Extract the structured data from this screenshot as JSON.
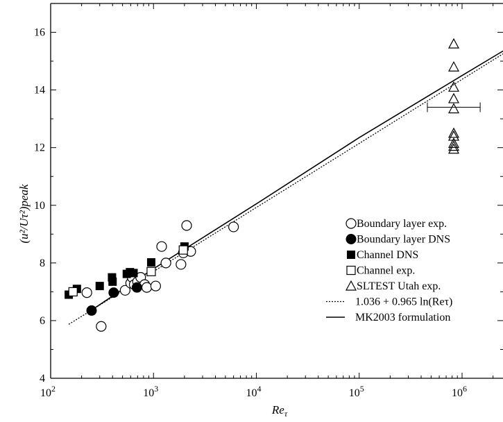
{
  "chart_data": {
    "type": "scatter",
    "xscale": "log",
    "xlim": [
      100,
      2500000
    ],
    "ylim": [
      4,
      17
    ],
    "xlabel_base": "Re",
    "xlabel_sub": "τ",
    "ylabel": "(u²/Uτ²)peak",
    "x_ticks": [
      {
        "value": 100,
        "base": "10",
        "exp": "2"
      },
      {
        "value": 1000,
        "base": "10",
        "exp": "3"
      },
      {
        "value": 10000,
        "base": "10",
        "exp": "4"
      },
      {
        "value": 100000,
        "base": "10",
        "exp": "5"
      },
      {
        "value": 1000000,
        "base": "10",
        "exp": "6"
      }
    ],
    "y_ticks": [
      "4",
      "6",
      "8",
      "10",
      "12",
      "14",
      "16"
    ],
    "legend_position": "right-center",
    "series": [
      {
        "name": "Boundary layer exp.",
        "marker": "open-circle",
        "x": [
          225,
          310,
          530,
          600,
          620,
          650,
          700,
          750,
          820,
          860,
          1050,
          1200,
          1320,
          1850,
          1950,
          2100,
          2300,
          6000
        ],
        "y": [
          6.97,
          5.8,
          7.05,
          7.3,
          7.5,
          7.25,
          7.35,
          7.5,
          7.25,
          7.15,
          7.2,
          8.57,
          8.0,
          7.95,
          8.35,
          9.3,
          8.4,
          9.25
        ]
      },
      {
        "name": "Boundary layer DNS",
        "marker": "filled-circle",
        "x": [
          250,
          410,
          690
        ],
        "y": [
          6.35,
          6.97,
          7.15
        ]
      },
      {
        "name": "Channel DNS",
        "marker": "filled-square",
        "x": [
          150,
          180,
          300,
          395,
          400,
          550,
          590,
          640,
          950,
          2000
        ],
        "y": [
          6.9,
          7.1,
          7.2,
          7.5,
          7.35,
          7.62,
          7.68,
          7.65,
          8.02,
          8.57
        ]
      },
      {
        "name": "Channel exp.",
        "marker": "open-square",
        "x": [
          165,
          950,
          1950
        ],
        "y": [
          7.0,
          7.7,
          8.45
        ]
      },
      {
        "name": "SLTEST Utah exp.",
        "marker": "open-triangle",
        "x": [
          830000,
          830000,
          830000,
          830000,
          830000,
          830000,
          830000,
          830000,
          830000,
          830000
        ],
        "y": [
          15.6,
          14.8,
          14.1,
          13.7,
          13.35,
          12.5,
          12.4,
          12.15,
          12.05,
          11.95
        ],
        "error_bar": {
          "x_low": 460000,
          "x_high": 1500000,
          "y": 13.4
        }
      },
      {
        "name": "1.036 + 0.965 ln(Reτ)",
        "marker": "dotted-line",
        "line": {
          "a": 1.036,
          "b": 0.965,
          "x_start": 150,
          "x_end": 2500000
        }
      },
      {
        "name": "MK2003 formulation",
        "marker": "solid-line",
        "line_points": {
          "x": [
            230,
            1000,
            10000,
            100000,
            1000000,
            2500000
          ],
          "y": [
            6.28,
            7.8,
            10.05,
            12.35,
            14.5,
            15.35
          ]
        }
      }
    ]
  }
}
